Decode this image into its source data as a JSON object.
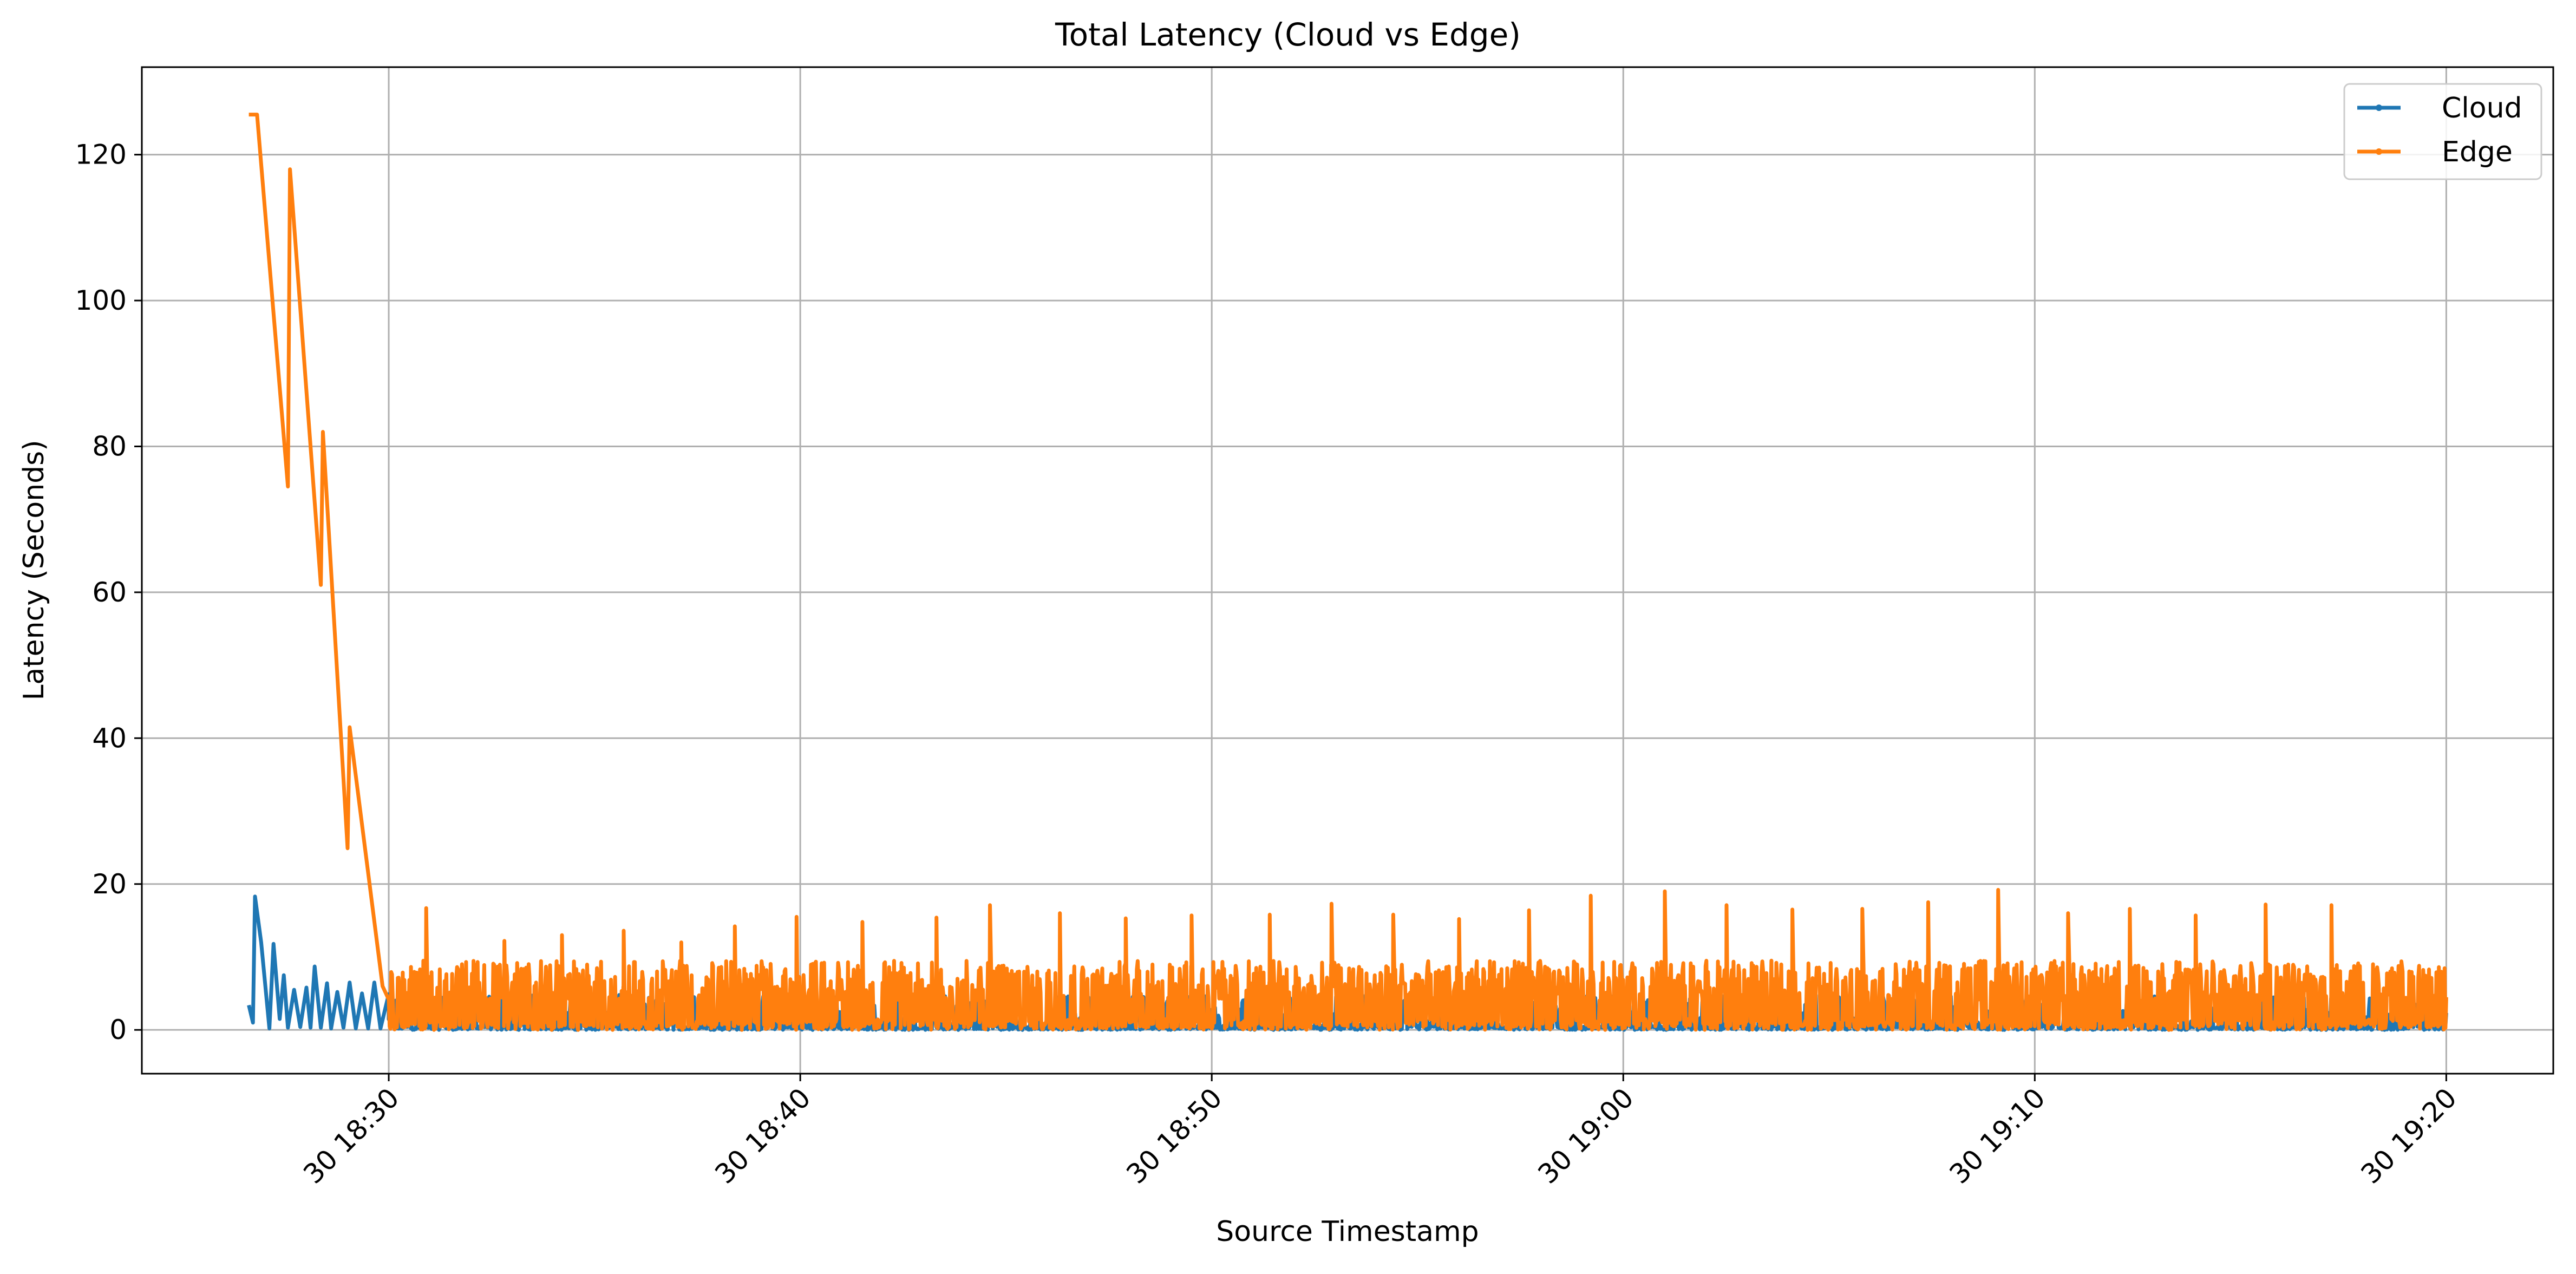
{
  "chart_data": {
    "type": "line",
    "title": "Total Latency (Cloud vs Edge)",
    "xlabel": "Source Timestamp",
    "ylabel": "Latency (Seconds)",
    "x_axis_kind": "time",
    "x_ticks": [
      "30 18:30",
      "30 18:40",
      "30 18:50",
      "30 19:00",
      "30 19:10",
      "30 19:20"
    ],
    "xlim": [
      "30 18:24",
      "30 19:22.6"
    ],
    "ylim": [
      -6,
      132
    ],
    "y_ticks": [
      0,
      20,
      40,
      60,
      80,
      100,
      120
    ],
    "grid": true,
    "legend_position": "top-right",
    "series": [
      {
        "name": "Cloud",
        "color": "#1f77b4",
        "points": [
          [
            "30 18:26.6",
            3.4
          ],
          [
            "30 18:26.7",
            1.0
          ],
          [
            "30 18:26.75",
            18.3
          ],
          [
            "30 18:26.9",
            12.0
          ],
          [
            "30 18:27.1",
            0.2
          ],
          [
            "30 18:27.2",
            11.8
          ],
          [
            "30 18:27.35",
            1.5
          ],
          [
            "30 18:27.45",
            7.5
          ],
          [
            "30 18:27.55",
            0.3
          ],
          [
            "30 18:27.7",
            5.5
          ],
          [
            "30 18:27.85",
            0.4
          ],
          [
            "30 18:28.0",
            5.8
          ],
          [
            "30 18:28.1",
            0.3
          ],
          [
            "30 18:28.2",
            8.7
          ],
          [
            "30 18:28.35",
            0.3
          ],
          [
            "30 18:28.5",
            6.4
          ],
          [
            "30 18:28.6",
            0.2
          ],
          [
            "30 18:28.75",
            5.2
          ],
          [
            "30 18:28.9",
            0.3
          ],
          [
            "30 18:29.05",
            6.5
          ],
          [
            "30 18:29.2",
            0.2
          ],
          [
            "30 18:29.35",
            5.0
          ],
          [
            "30 18:29.5",
            0.2
          ],
          [
            "30 18:29.65",
            6.5
          ],
          [
            "30 18:29.8",
            0.2
          ],
          [
            "30 18:30.0",
            4.9
          ]
        ],
        "periodic_after": {
          "start": "30 18:30",
          "end": "30 19:20",
          "baseline_max": 4.8,
          "peak_every_min": 1.65,
          "peak_value": 4.6
        }
      },
      {
        "name": "Edge",
        "color": "#ff7f0e",
        "points": [
          [
            "30 18:26.6",
            125.5
          ],
          [
            "30 18:26.8",
            125.5
          ],
          [
            "30 18:27.55",
            74.5
          ],
          [
            "30 18:27.6",
            118.0
          ],
          [
            "30 18:28.35",
            61.0
          ],
          [
            "30 18:28.4",
            82.0
          ],
          [
            "30 18:29.0",
            24.9
          ],
          [
            "30 18:29.05",
            41.5
          ],
          [
            "30 18:29.85",
            6.0
          ]
        ],
        "periodic_after": {
          "start": "30 18:30",
          "end": "30 19:20",
          "band_min": 0,
          "band_max": 9.5,
          "spike_minutes_after_18_30": [
            0.9,
            2.8,
            4.2,
            5.7,
            7.1,
            8.4,
            9.9,
            11.5,
            13.3,
            14.6,
            16.3,
            17.9,
            19.5,
            21.4,
            22.9,
            24.4,
            26.0,
            27.7,
            29.2,
            31.0,
            32.5,
            34.1,
            35.8,
            37.4,
            39.1,
            40.8,
            42.3,
            43.9,
            45.6,
            47.2,
            48.9
          ],
          "spike_values": [
            16.7,
            12.2,
            13.0,
            13.6,
            12.0,
            14.2,
            15.5,
            14.8,
            15.4,
            17.1,
            16.0,
            15.3,
            15.7,
            15.8,
            17.3,
            15.8,
            15.2,
            16.4,
            18.4,
            19.0,
            17.1,
            16.5,
            16.6,
            17.5,
            19.2,
            16.0,
            16.6,
            15.7,
            17.2,
            17.1,
            9.4
          ]
        }
      }
    ]
  }
}
